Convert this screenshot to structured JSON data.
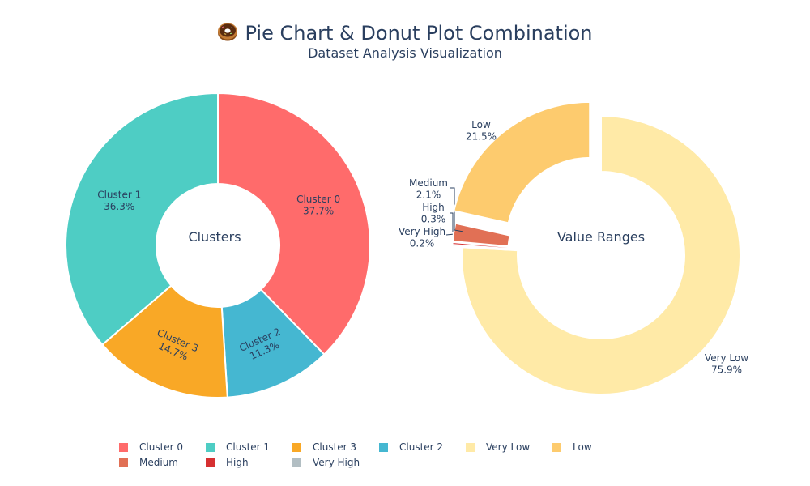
{
  "header": {
    "title": "Pie Chart & Donut Plot Combination",
    "subtitle": "Dataset Analysis Visualization",
    "icon": "donut-icon"
  },
  "chart_data": [
    {
      "type": "pie",
      "hole": true,
      "center_label": "Clusters",
      "direction": "clockwise",
      "start": "top",
      "slices": [
        {
          "label": "Cluster 0",
          "value": 37.7,
          "color": "#FF6B6B"
        },
        {
          "label": "Cluster 2",
          "value": 11.3,
          "color": "#45B7D1"
        },
        {
          "label": "Cluster 3",
          "value": 14.7,
          "color": "#F9A826"
        },
        {
          "label": "Cluster 1",
          "value": 36.3,
          "color": "#4ECDC4"
        }
      ]
    },
    {
      "type": "pie",
      "hole": true,
      "center_label": "Value Ranges",
      "direction": "clockwise",
      "start": "top",
      "slices": [
        {
          "label": "Very Low",
          "value": 75.9,
          "color": "#FFEAA7"
        },
        {
          "label": "Very High",
          "value": 0.2,
          "color": "#B2BEC3"
        },
        {
          "label": "High",
          "value": 0.3,
          "color": "#D63031"
        },
        {
          "label": "Medium",
          "value": 2.1,
          "color": "#E17055"
        },
        {
          "label": "Low",
          "value": 21.5,
          "color": "#FDCB6E"
        }
      ]
    }
  ],
  "legend": [
    {
      "label": "Cluster 0",
      "color": "#FF6B6B"
    },
    {
      "label": "Cluster 1",
      "color": "#4ECDC4"
    },
    {
      "label": "Cluster 3",
      "color": "#F9A826"
    },
    {
      "label": "Cluster 2",
      "color": "#45B7D1"
    },
    {
      "label": "Very Low",
      "color": "#FFEAA7"
    },
    {
      "label": "Low",
      "color": "#FDCB6E"
    },
    {
      "label": "Medium",
      "color": "#E17055"
    },
    {
      "label": "High",
      "color": "#D63031"
    },
    {
      "label": "Very High",
      "color": "#B2BEC3"
    }
  ]
}
